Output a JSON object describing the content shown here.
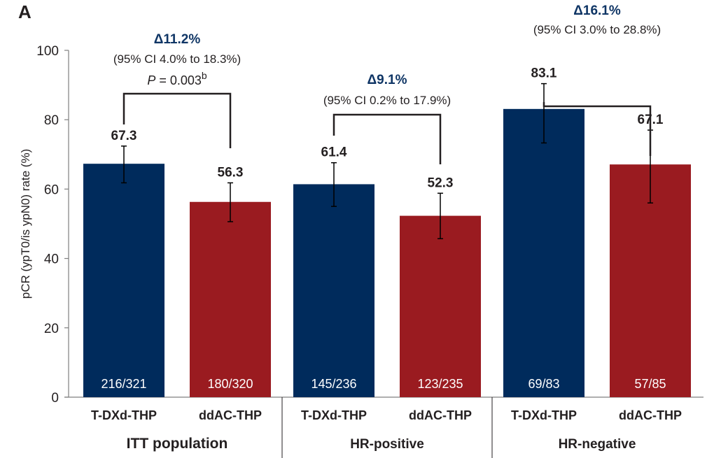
{
  "panel_label": "A",
  "colors": {
    "t_dxd": "#002b5c",
    "ddac": "#9a1b20",
    "delta_text": "#0f3565",
    "text": "#231f20",
    "axis": "#7f7f7f"
  },
  "chart_data": {
    "type": "bar",
    "title": "",
    "xlabel": "",
    "ylabel": "pCR (ypT0/is ypN0) rate (%)",
    "ylim": [
      0,
      100
    ],
    "yticks": [
      0,
      20,
      40,
      60,
      80,
      100
    ],
    "grid": false,
    "groups": [
      {
        "name": "ITT population",
        "bars": [
          {
            "arm": "T-DXd-THP",
            "value": 67.3,
            "ci_low": 61.8,
            "ci_high": 72.4,
            "n_label": "216/321",
            "series": "t_dxd"
          },
          {
            "arm": "ddAC-THP",
            "value": 56.3,
            "ci_low": 50.6,
            "ci_high": 61.8,
            "n_label": "180/320",
            "series": "ddac"
          }
        ],
        "comparison": {
          "delta": "Δ11.2%",
          "ci_text": "(95% CI 4.0% to 18.3%)",
          "p_prefix": "P",
          "p_text": " = 0.003",
          "p_superscript": "b"
        }
      },
      {
        "name": "HR-positive",
        "bars": [
          {
            "arm": "T-DXd-THP",
            "value": 61.4,
            "ci_low": 55.0,
            "ci_high": 67.6,
            "n_label": "145/236",
            "series": "t_dxd"
          },
          {
            "arm": "ddAC-THP",
            "value": 52.3,
            "ci_low": 45.7,
            "ci_high": 58.8,
            "n_label": "123/235",
            "series": "ddac"
          }
        ],
        "comparison": {
          "delta": "Δ9.1%",
          "ci_text": "(95% CI 0.2% to 17.9%)"
        }
      },
      {
        "name": "HR-negative",
        "bars": [
          {
            "arm": "T-DXd-THP",
            "value": 83.1,
            "ci_low": 73.3,
            "ci_high": 90.4,
            "n_label": "69/83",
            "series": "t_dxd"
          },
          {
            "arm": "ddAC-THP",
            "value": 67.1,
            "ci_low": 56.0,
            "ci_high": 77.0,
            "n_label": "57/85",
            "series": "ddac"
          }
        ],
        "comparison": {
          "delta": "Δ16.1%",
          "ci_text": "(95% CI 3.0% to 28.8%)"
        }
      }
    ]
  }
}
